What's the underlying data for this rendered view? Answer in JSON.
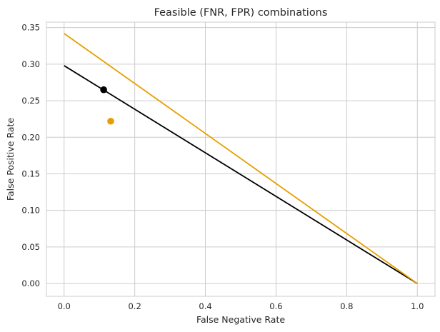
{
  "chart_data": {
    "type": "line",
    "title": "Feasible (FNR, FPR) combinations",
    "xlabel": "False Negative Rate",
    "ylabel": "False Positive Rate",
    "xlim": [
      -0.05,
      1.05
    ],
    "ylim": [
      -0.0175,
      0.3575
    ],
    "xticks": [
      0.0,
      0.2,
      0.4,
      0.6,
      0.8,
      1.0
    ],
    "xtick_labels": [
      "0.0",
      "0.2",
      "0.4",
      "0.6",
      "0.8",
      "1.0"
    ],
    "yticks": [
      0.0,
      0.05,
      0.1,
      0.15,
      0.2,
      0.25,
      0.3,
      0.35
    ],
    "ytick_labels": [
      "0.00",
      "0.05",
      "0.10",
      "0.15",
      "0.20",
      "0.25",
      "0.30",
      "0.35"
    ],
    "grid": true,
    "series": [
      {
        "color": "#000000",
        "x": [
          0.0,
          1.0
        ],
        "y": [
          0.298,
          0.0
        ]
      },
      {
        "color": "#e69f00",
        "x": [
          0.0,
          1.0
        ],
        "y": [
          0.342,
          0.0
        ]
      }
    ],
    "points": [
      {
        "color": "#000000",
        "x": 0.112,
        "y": 0.265
      },
      {
        "color": "#e69f00",
        "x": 0.132,
        "y": 0.222
      }
    ]
  }
}
